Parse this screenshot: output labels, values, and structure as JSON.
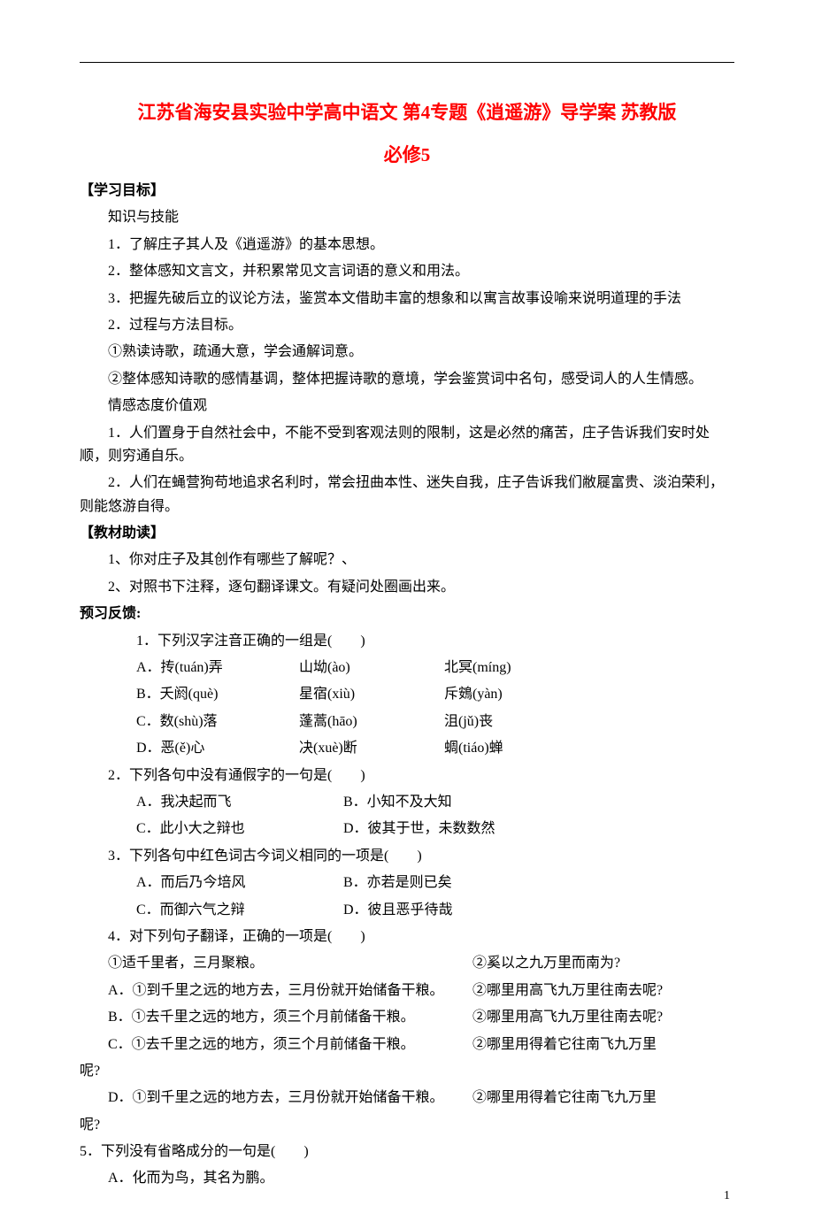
{
  "title": "江苏省海安县实验中学高中语文 第4专题《逍遥游》导学案 苏教版",
  "subtitle": "必修5",
  "sections": {
    "goals_head": "【学习目标】",
    "goals_sub1": "知识与技能",
    "goals_items1": [
      "1．了解庄子其人及《逍遥游》的基本思想。",
      "2．整体感知文言文，并积累常见文言词语的意义和用法。",
      "3．把握先破后立的议论方法，鉴赏本文借助丰富的想象和以寓言故事设喻来说明道理的手法"
    ],
    "goals_sub2": "2．过程与方法目标。",
    "goals_items2": [
      "①熟读诗歌，疏通大意，学会通解词意。",
      "②整体感知诗歌的感情基调，整体把握诗歌的意境，学会鉴赏词中名句，感受词人的人生情感。"
    ],
    "goals_sub3": "情感态度价值观",
    "goals_items3": [
      "1．人们置身于自然社会中，不能不受到客观法则的限制，这是必然的痛苦，庄子告诉我们安时处顺，则穷通自乐。",
      "2．人们在蝇营狗苟地追求名利时，常会扭曲本性、迷失自我，庄子告诉我们敝屣富贵、淡泊荣利，则能悠游自得。"
    ],
    "help_head": "【教材助读】",
    "help_items": [
      "1、你对庄子及其创作有哪些了解呢？、",
      "2、对照书下注释，逐句翻译课文。有疑问处圈画出来。"
    ],
    "preview_head": "预习反馈:",
    "q1": "1．下列汉字注音正确的一组是(　　)",
    "q1_opts": [
      {
        "a": "A．抟(tuán)弄",
        "b": "山坳(ào)",
        "c": "北冥(míng)"
      },
      {
        "a": "B．夭阏(què)",
        "b": "星宿(xiù)",
        "c": "斥鴳(yàn)"
      },
      {
        "a": "C．数(shù)落",
        "b": "蓬蒿(hāo)",
        "c": "沮(jǔ)丧"
      },
      {
        "a": "D．恶(ě)心",
        "b": "决(xuè)断",
        "c": "蜩(tiáo)蝉"
      }
    ],
    "q2": "2．下列各句中没有通假字的一句是(　　)",
    "q2_opts": [
      {
        "l": "A．我决起而飞",
        "r": "B．小知不及大知"
      },
      {
        "l": "C．此小大之辩也",
        "r": "D．彼其于世，未数数然"
      }
    ],
    "q3": "3．下列各句中红色词古今词义相同的一项是(　　)",
    "q3_opts": [
      {
        "l": "A．而后乃今培风",
        "r": "B．亦若是则已矣"
      },
      {
        "l": "C．而御六气之辩",
        "r": "D．彼且恶乎待哉"
      }
    ],
    "q4": "4．对下列句子翻译，正确的一项是(　　)",
    "q4_sub": {
      "l": "①适千里者，三月聚粮。",
      "r": "②奚以之九万里而南为?"
    },
    "q4_opts": [
      {
        "l": "A．①到千里之远的地方去，三月份就开始储备干粮。",
        "r": "②哪里用高飞九万里往南去呢?"
      },
      {
        "l": "B．①去千里之远的地方，须三个月前储备干粮。",
        "r": "②哪里用高飞九万里往南去呢?"
      },
      {
        "l": "C．①去千里之远的地方，须三个月前储备干粮。",
        "r": "②哪里用得着它往南飞九万里"
      },
      {
        "tail": "呢?"
      },
      {
        "l": "D．①到千里之远的地方去，三月份就开始储备干粮。",
        "r": "②哪里用得着它往南飞九万里"
      },
      {
        "tail": "呢?"
      }
    ],
    "q5": "5．下列没有省略成分的一句是(　　)",
    "q5_opt": "A．化而为鸟，其名为鹏。"
  },
  "pagenum": "1",
  "colors": {
    "title": "#ff0000",
    "text": "#000000",
    "bg": "#ffffff"
  },
  "fontsize": {
    "title": 21,
    "body": 16,
    "pagenum": 14
  }
}
